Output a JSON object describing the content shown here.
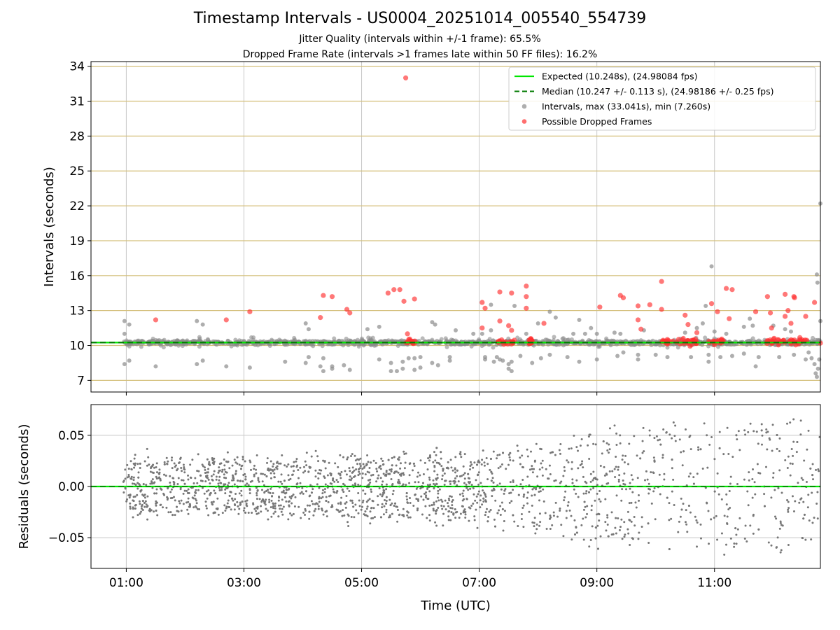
{
  "header": {
    "title": "Timestamp Intervals - US0004_20251014_005540_554739",
    "subtitle_1": "Jitter Quality (intervals within +/-1 frame): 65.5%",
    "subtitle_2": "Dropped Frame Rate (intervals >1 frames late within 50 FF files): 16.2%"
  },
  "chart_data": [
    {
      "type": "scatter",
      "panel": "top",
      "ylabel": "Intervals (seconds)",
      "xlabel": "",
      "xlim_hours": [
        0.4,
        12.8
      ],
      "ylim": [
        6.0,
        34.4
      ],
      "yticks": [
        7,
        10,
        13,
        16,
        19,
        22,
        25,
        28,
        31,
        34
      ],
      "ytick_labels": [
        "7",
        "10",
        "13",
        "16",
        "19",
        "22",
        "25",
        "28",
        "31",
        "34"
      ],
      "hgrid_color": "#d4bf7a",
      "vgrid_hours": [
        1,
        3,
        5,
        7,
        9,
        11
      ],
      "expected_interval": 10.248,
      "median_interval": 10.247,
      "legend": {
        "placement": "top-right",
        "entries": [
          {
            "label": "Expected (10.248s), (24.98084 fps)",
            "style": "solid-line",
            "color": "#00e600"
          },
          {
            "label": "Median (10.247 +/- 0.113 s), (24.98186 +/- 0.25 fps)",
            "style": "dashed-line",
            "color": "#007a00"
          },
          {
            "label": "Intervals, max (33.041s), min (7.260s)",
            "style": "marker",
            "color": "#8c8c8c"
          },
          {
            "label": "Possible Dropped Frames",
            "style": "marker",
            "color": "#ff3030"
          }
        ]
      },
      "series": [
        {
          "name": "Intervals",
          "color": "#8c8c8c",
          "band_center": 10.25,
          "hour_range": [
            0.95,
            12.8
          ],
          "outliers": [
            [
              0.97,
              12.1
            ],
            [
              0.97,
              11.0
            ],
            [
              0.97,
              8.4
            ],
            [
              1.05,
              11.8
            ],
            [
              1.05,
              8.7
            ],
            [
              1.5,
              8.2
            ],
            [
              2.2,
              12.1
            ],
            [
              2.2,
              8.4
            ],
            [
              2.3,
              11.8
            ],
            [
              2.3,
              8.7
            ],
            [
              2.7,
              8.2
            ],
            [
              3.1,
              8.1
            ],
            [
              3.7,
              8.6
            ],
            [
              4.05,
              11.9
            ],
            [
              4.05,
              8.5
            ],
            [
              4.1,
              11.4
            ],
            [
              4.1,
              9.0
            ],
            [
              4.3,
              8.2
            ],
            [
              4.35,
              7.8
            ],
            [
              4.35,
              8.9
            ],
            [
              4.5,
              8.2
            ],
            [
              4.5,
              8.0
            ],
            [
              4.7,
              8.3
            ],
            [
              4.8,
              7.9
            ],
            [
              5.1,
              11.4
            ],
            [
              5.3,
              11.6
            ],
            [
              5.3,
              8.8
            ],
            [
              5.5,
              8.5
            ],
            [
              5.5,
              7.8
            ],
            [
              5.6,
              7.8
            ],
            [
              5.7,
              8.6
            ],
            [
              5.7,
              8.0
            ],
            [
              5.8,
              8.9
            ],
            [
              5.9,
              8.9
            ],
            [
              5.9,
              7.9
            ],
            [
              6.0,
              9.0
            ],
            [
              6.0,
              8.1
            ],
            [
              6.2,
              12.0
            ],
            [
              6.2,
              8.5
            ],
            [
              6.25,
              11.8
            ],
            [
              6.3,
              8.3
            ],
            [
              6.5,
              9.0
            ],
            [
              6.5,
              8.7
            ],
            [
              6.6,
              11.3
            ],
            [
              6.9,
              11.0
            ],
            [
              7.05,
              11.0
            ],
            [
              7.1,
              9.0
            ],
            [
              7.1,
              8.8
            ],
            [
              7.2,
              13.5
            ],
            [
              7.2,
              11.3
            ],
            [
              7.25,
              8.6
            ],
            [
              7.3,
              9.0
            ],
            [
              7.35,
              8.8
            ],
            [
              7.4,
              8.7
            ],
            [
              7.5,
              8.4
            ],
            [
              7.5,
              8.0
            ],
            [
              7.55,
              7.8
            ],
            [
              7.55,
              8.6
            ],
            [
              7.6,
              13.4
            ],
            [
              7.7,
              9.1
            ],
            [
              7.8,
              11.0
            ],
            [
              7.9,
              8.5
            ],
            [
              8.0,
              11.9
            ],
            [
              8.05,
              8.9
            ],
            [
              8.2,
              12.9
            ],
            [
              8.2,
              9.2
            ],
            [
              8.3,
              12.4
            ],
            [
              8.5,
              9.0
            ],
            [
              8.6,
              11.0
            ],
            [
              8.7,
              12.2
            ],
            [
              8.7,
              8.6
            ],
            [
              8.8,
              11.0
            ],
            [
              8.9,
              11.5
            ],
            [
              9.0,
              11.0
            ],
            [
              9.0,
              8.8
            ],
            [
              9.3,
              11.1
            ],
            [
              9.35,
              9.1
            ],
            [
              9.4,
              11.0
            ],
            [
              9.45,
              9.4
            ],
            [
              9.7,
              9.2
            ],
            [
              9.7,
              8.8
            ],
            [
              9.8,
              11.3
            ],
            [
              10.0,
              9.2
            ],
            [
              10.2,
              9.0
            ],
            [
              10.5,
              11.1
            ],
            [
              10.6,
              9.0
            ],
            [
              10.7,
              11.5
            ],
            [
              10.8,
              11.9
            ],
            [
              10.85,
              13.4
            ],
            [
              10.9,
              9.2
            ],
            [
              10.9,
              8.6
            ],
            [
              10.95,
              16.8
            ],
            [
              11.0,
              11.2
            ],
            [
              11.1,
              9.0
            ],
            [
              11.2,
              11.0
            ],
            [
              11.3,
              9.1
            ],
            [
              11.5,
              11.6
            ],
            [
              11.5,
              9.3
            ],
            [
              11.6,
              12.3
            ],
            [
              11.65,
              11.7
            ],
            [
              11.7,
              8.2
            ],
            [
              11.75,
              9.0
            ],
            [
              12.0,
              11.7
            ],
            [
              12.1,
              9.0
            ],
            [
              12.2,
              11.4
            ],
            [
              12.3,
              11.2
            ],
            [
              12.35,
              9.2
            ],
            [
              12.55,
              8.8
            ],
            [
              12.6,
              9.4
            ],
            [
              12.65,
              8.9
            ],
            [
              12.7,
              8.4
            ],
            [
              12.72,
              7.6
            ],
            [
              12.74,
              7.3
            ],
            [
              12.76,
              8.0
            ],
            [
              12.78,
              8.8
            ],
            [
              12.75,
              15.4
            ],
            [
              12.74,
              16.1
            ],
            [
              12.8,
              22.2
            ],
            [
              12.8,
              12.1
            ]
          ]
        },
        {
          "name": "Possible Dropped Frames",
          "color": "#ff3030",
          "points": [
            [
              1.5,
              12.2
            ],
            [
              2.7,
              12.2
            ],
            [
              3.1,
              12.9
            ],
            [
              4.3,
              12.4
            ],
            [
              4.35,
              14.3
            ],
            [
              4.5,
              14.2
            ],
            [
              4.75,
              13.1
            ],
            [
              4.8,
              12.8
            ],
            [
              5.45,
              14.5
            ],
            [
              5.55,
              14.8
            ],
            [
              5.65,
              14.8
            ],
            [
              5.72,
              13.8
            ],
            [
              5.75,
              33.0
            ],
            [
              5.9,
              14.0
            ],
            [
              5.78,
              11.0
            ],
            [
              7.05,
              13.7
            ],
            [
              7.05,
              11.5
            ],
            [
              7.1,
              13.2
            ],
            [
              7.35,
              14.6
            ],
            [
              7.35,
              12.1
            ],
            [
              7.5,
              11.7
            ],
            [
              7.55,
              14.5
            ],
            [
              7.55,
              11.3
            ],
            [
              7.8,
              15.1
            ],
            [
              7.8,
              14.2
            ],
            [
              7.8,
              13.2
            ],
            [
              8.1,
              11.9
            ],
            [
              9.05,
              13.3
            ],
            [
              9.4,
              14.3
            ],
            [
              9.45,
              14.1
            ],
            [
              9.7,
              13.4
            ],
            [
              9.7,
              12.2
            ],
            [
              9.75,
              11.4
            ],
            [
              9.9,
              13.5
            ],
            [
              10.1,
              15.5
            ],
            [
              10.1,
              13.1
            ],
            [
              10.5,
              12.6
            ],
            [
              10.55,
              11.8
            ],
            [
              10.7,
              11.1
            ],
            [
              10.95,
              13.6
            ],
            [
              11.05,
              12.9
            ],
            [
              11.2,
              14.9
            ],
            [
              11.3,
              14.8
            ],
            [
              11.25,
              12.3
            ],
            [
              11.7,
              12.9
            ],
            [
              11.9,
              14.2
            ],
            [
              11.95,
              12.8
            ],
            [
              11.97,
              11.5
            ],
            [
              12.2,
              14.4
            ],
            [
              12.25,
              13.0
            ],
            [
              12.2,
              12.5
            ],
            [
              12.3,
              11.9
            ],
            [
              12.35,
              14.2
            ],
            [
              12.36,
              14.1
            ],
            [
              12.55,
              12.5
            ],
            [
              12.7,
              13.7
            ],
            [
              12.8,
              10.2
            ]
          ],
          "dense_clusters": [
            [
              5.75,
              5.92
            ],
            [
              7.3,
              7.6
            ],
            [
              7.85,
              7.9
            ],
            [
              10.1,
              10.5
            ],
            [
              10.5,
              10.7
            ],
            [
              10.9,
              11.15
            ],
            [
              11.85,
              12.2
            ],
            [
              12.25,
              12.6
            ]
          ]
        }
      ]
    },
    {
      "type": "scatter",
      "panel": "bottom",
      "ylabel": "Residuals (seconds)",
      "xlabel": "Time (UTC)",
      "xlim_hours": [
        0.4,
        12.8
      ],
      "ylim": [
        -0.08,
        0.08
      ],
      "yticks": [
        -0.05,
        0.0,
        0.05
      ],
      "ytick_labels": [
        "−0.05",
        "0.00",
        "0.05"
      ],
      "xticks_hours": [
        1,
        3,
        5,
        7,
        9,
        11
      ],
      "xtick_labels": [
        "01:00",
        "03:00",
        "05:00",
        "07:00",
        "09:00",
        "11:00"
      ],
      "zero_line": 0.0,
      "series": [
        {
          "name": "Residuals",
          "color": "#777777",
          "spread_by_hour": [
            [
              0.95,
              0.028
            ],
            [
              7.0,
              0.035
            ],
            [
              9.0,
              0.06
            ],
            [
              12.8,
              0.075
            ]
          ]
        }
      ]
    }
  ]
}
